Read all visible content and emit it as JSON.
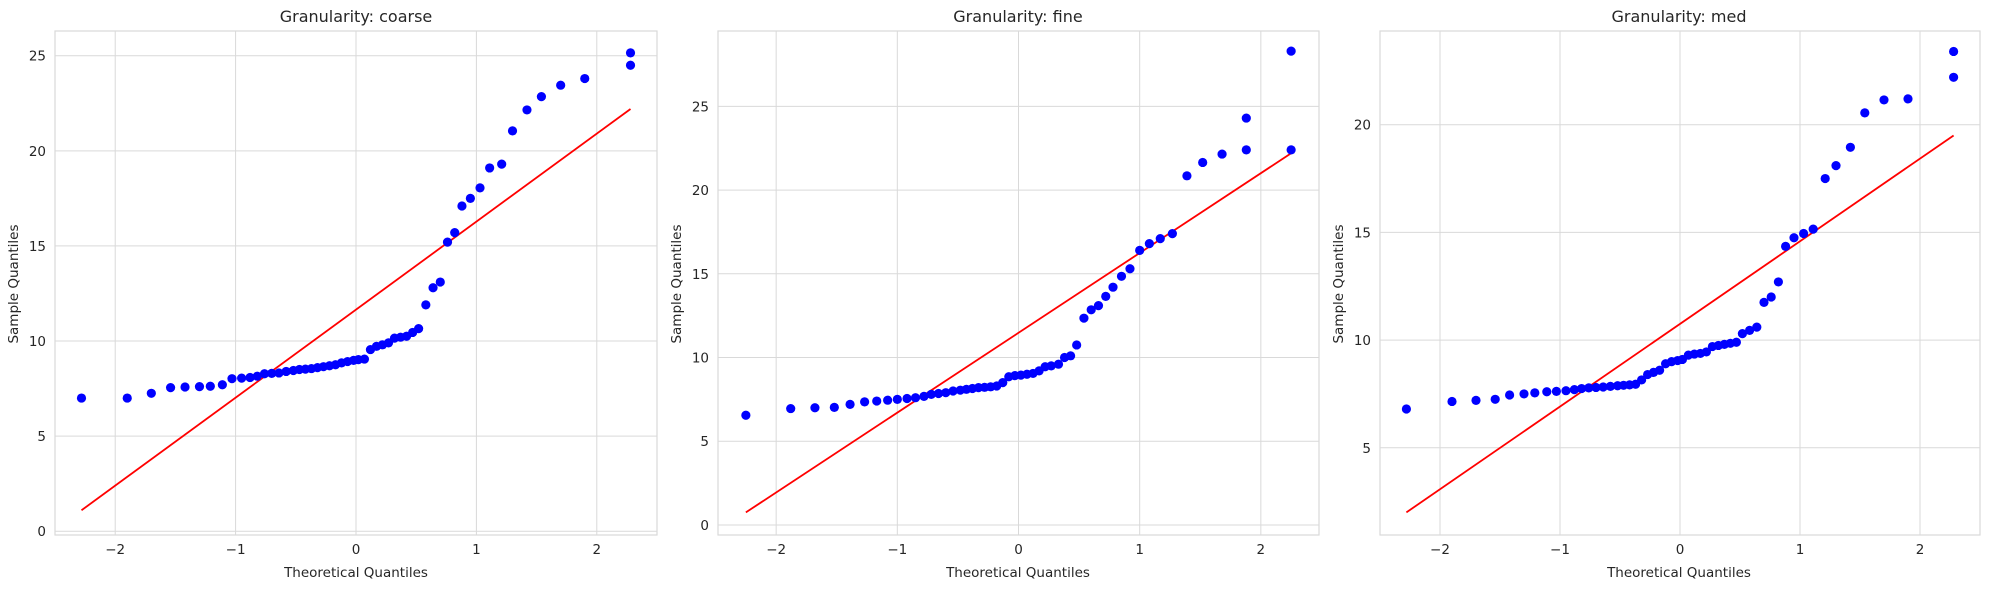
{
  "figure": {
    "background": "#ffffff",
    "grid_color": "#d9d9d9",
    "point_color": "#0000ff",
    "line_color": "#ff0000"
  },
  "chart_data": [
    {
      "type": "scatter",
      "title": "Granularity: coarse",
      "xlabel": "Theoretical Quantiles",
      "ylabel": "Sample Quantiles",
      "xlim": [
        -2.5,
        2.5
      ],
      "ylim": [
        -0.2,
        26.3
      ],
      "xticks": [
        -2,
        -1,
        0,
        1,
        2
      ],
      "xtick_labels": [
        "−2",
        "−1",
        "0",
        "1",
        "2"
      ],
      "yticks": [
        0,
        5,
        10,
        15,
        20,
        25
      ],
      "ytick_labels": [
        "0",
        "5",
        "10",
        "15",
        "20",
        "25"
      ],
      "grid": true,
      "points": [
        [
          -2.28,
          7.0
        ],
        [
          -1.9,
          7.0
        ],
        [
          -1.7,
          7.25
        ],
        [
          -1.54,
          7.55
        ],
        [
          -1.42,
          7.58
        ],
        [
          -1.3,
          7.6
        ],
        [
          -1.21,
          7.62
        ],
        [
          -1.11,
          7.7
        ],
        [
          -1.03,
          8.02
        ],
        [
          -0.95,
          8.05
        ],
        [
          -0.88,
          8.08
        ],
        [
          -0.82,
          8.15
        ],
        [
          -0.76,
          8.28
        ],
        [
          -0.7,
          8.3
        ],
        [
          -0.64,
          8.32
        ],
        [
          -0.58,
          8.4
        ],
        [
          -0.52,
          8.45
        ],
        [
          -0.47,
          8.5
        ],
        [
          -0.42,
          8.52
        ],
        [
          -0.37,
          8.55
        ],
        [
          -0.32,
          8.6
        ],
        [
          -0.27,
          8.65
        ],
        [
          -0.22,
          8.7
        ],
        [
          -0.17,
          8.75
        ],
        [
          -0.12,
          8.85
        ],
        [
          -0.07,
          8.92
        ],
        [
          -0.02,
          8.98
        ],
        [
          0.02,
          9.02
        ],
        [
          0.07,
          9.05
        ],
        [
          0.12,
          9.55
        ],
        [
          0.17,
          9.72
        ],
        [
          0.22,
          9.8
        ],
        [
          0.27,
          9.9
        ],
        [
          0.32,
          10.15
        ],
        [
          0.37,
          10.2
        ],
        [
          0.42,
          10.25
        ],
        [
          0.47,
          10.45
        ],
        [
          0.52,
          10.65
        ],
        [
          0.58,
          11.9
        ],
        [
          0.64,
          12.8
        ],
        [
          0.7,
          13.1
        ],
        [
          0.76,
          15.2
        ],
        [
          0.82,
          15.7
        ],
        [
          0.88,
          17.1
        ],
        [
          0.95,
          17.5
        ],
        [
          1.03,
          18.05
        ],
        [
          1.11,
          19.1
        ],
        [
          1.21,
          19.3
        ],
        [
          1.3,
          21.05
        ],
        [
          1.42,
          22.15
        ],
        [
          1.54,
          22.85
        ],
        [
          1.7,
          23.45
        ],
        [
          1.9,
          23.8
        ],
        [
          2.28,
          24.5
        ],
        [
          2.28,
          25.15
        ]
      ],
      "line": [
        [
          -2.28,
          1.1
        ],
        [
          2.28,
          22.2
        ]
      ]
    },
    {
      "type": "scatter",
      "title": "Granularity: fine",
      "xlabel": "Theoretical Quantiles",
      "ylabel": "Sample Quantiles",
      "xlim": [
        -2.48,
        2.48
      ],
      "ylim": [
        -0.6,
        29.5
      ],
      "xticks": [
        -2,
        -1,
        0,
        1,
        2
      ],
      "xtick_labels": [
        "−2",
        "−1",
        "0",
        "1",
        "2"
      ],
      "yticks": [
        0,
        5,
        10,
        15,
        20,
        25
      ],
      "ytick_labels": [
        "0",
        "5",
        "10",
        "15",
        "20",
        "25"
      ],
      "grid": true,
      "points": [
        [
          -2.25,
          6.55
        ],
        [
          -1.88,
          6.95
        ],
        [
          -1.68,
          7.0
        ],
        [
          -1.52,
          7.02
        ],
        [
          -1.39,
          7.2
        ],
        [
          -1.27,
          7.35
        ],
        [
          -1.17,
          7.4
        ],
        [
          -1.08,
          7.45
        ],
        [
          -1.0,
          7.5
        ],
        [
          -0.92,
          7.55
        ],
        [
          -0.85,
          7.6
        ],
        [
          -0.78,
          7.68
        ],
        [
          -0.72,
          7.8
        ],
        [
          -0.66,
          7.85
        ],
        [
          -0.6,
          7.9
        ],
        [
          -0.54,
          8.0
        ],
        [
          -0.48,
          8.05
        ],
        [
          -0.43,
          8.1
        ],
        [
          -0.38,
          8.15
        ],
        [
          -0.33,
          8.2
        ],
        [
          -0.28,
          8.22
        ],
        [
          -0.23,
          8.25
        ],
        [
          -0.18,
          8.3
        ],
        [
          -0.13,
          8.5
        ],
        [
          -0.08,
          8.85
        ],
        [
          -0.03,
          8.92
        ],
        [
          0.02,
          8.95
        ],
        [
          0.07,
          9.0
        ],
        [
          0.12,
          9.05
        ],
        [
          0.17,
          9.2
        ],
        [
          0.22,
          9.45
        ],
        [
          0.27,
          9.5
        ],
        [
          0.33,
          9.6
        ],
        [
          0.38,
          10.0
        ],
        [
          0.43,
          10.1
        ],
        [
          0.48,
          10.75
        ],
        [
          0.54,
          12.35
        ],
        [
          0.6,
          12.85
        ],
        [
          0.66,
          13.1
        ],
        [
          0.72,
          13.65
        ],
        [
          0.78,
          14.2
        ],
        [
          0.85,
          14.85
        ],
        [
          0.92,
          15.3
        ],
        [
          1.0,
          16.4
        ],
        [
          1.08,
          16.8
        ],
        [
          1.17,
          17.1
        ],
        [
          1.27,
          17.4
        ],
        [
          1.39,
          20.85
        ],
        [
          1.52,
          21.65
        ],
        [
          1.68,
          22.15
        ],
        [
          1.88,
          22.4
        ],
        [
          2.25,
          22.4
        ],
        [
          1.88,
          24.3
        ],
        [
          2.25,
          28.3
        ]
      ],
      "line": [
        [
          -2.25,
          0.75
        ],
        [
          2.25,
          22.2
        ]
      ]
    },
    {
      "type": "scatter",
      "title": "Granularity: med",
      "xlabel": "Theoretical Quantiles",
      "ylabel": "Sample Quantiles",
      "xlim": [
        -2.5,
        2.5
      ],
      "ylim": [
        0.95,
        24.35
      ],
      "xticks": [
        -2,
        -1,
        0,
        1,
        2
      ],
      "xtick_labels": [
        "−2",
        "−1",
        "0",
        "1",
        "2"
      ],
      "yticks": [
        5,
        10,
        15,
        20
      ],
      "ytick_labels": [
        "5",
        "10",
        "15",
        "20"
      ],
      "grid": true,
      "points": [
        [
          -2.28,
          6.8
        ],
        [
          -1.9,
          7.15
        ],
        [
          -1.7,
          7.2
        ],
        [
          -1.54,
          7.25
        ],
        [
          -1.42,
          7.45
        ],
        [
          -1.3,
          7.5
        ],
        [
          -1.21,
          7.55
        ],
        [
          -1.11,
          7.6
        ],
        [
          -1.03,
          7.62
        ],
        [
          -0.95,
          7.65
        ],
        [
          -0.88,
          7.7
        ],
        [
          -0.82,
          7.75
        ],
        [
          -0.76,
          7.78
        ],
        [
          -0.7,
          7.8
        ],
        [
          -0.64,
          7.82
        ],
        [
          -0.58,
          7.85
        ],
        [
          -0.52,
          7.88
        ],
        [
          -0.47,
          7.9
        ],
        [
          -0.42,
          7.92
        ],
        [
          -0.37,
          7.95
        ],
        [
          -0.32,
          8.15
        ],
        [
          -0.27,
          8.4
        ],
        [
          -0.22,
          8.5
        ],
        [
          -0.17,
          8.6
        ],
        [
          -0.12,
          8.9
        ],
        [
          -0.07,
          9.0
        ],
        [
          -0.02,
          9.05
        ],
        [
          0.02,
          9.1
        ],
        [
          0.07,
          9.3
        ],
        [
          0.12,
          9.35
        ],
        [
          0.17,
          9.38
        ],
        [
          0.22,
          9.45
        ],
        [
          0.27,
          9.7
        ],
        [
          0.32,
          9.75
        ],
        [
          0.37,
          9.8
        ],
        [
          0.42,
          9.85
        ],
        [
          0.47,
          9.9
        ],
        [
          0.52,
          10.3
        ],
        [
          0.58,
          10.45
        ],
        [
          0.64,
          10.6
        ],
        [
          0.7,
          11.75
        ],
        [
          0.76,
          12.0
        ],
        [
          0.82,
          12.7
        ],
        [
          0.88,
          14.35
        ],
        [
          0.95,
          14.75
        ],
        [
          1.03,
          14.95
        ],
        [
          1.11,
          15.15
        ],
        [
          1.21,
          17.5
        ],
        [
          1.3,
          18.1
        ],
        [
          1.42,
          18.95
        ],
        [
          1.54,
          20.55
        ],
        [
          1.7,
          21.15
        ],
        [
          1.9,
          21.2
        ],
        [
          2.28,
          22.2
        ],
        [
          2.28,
          23.4
        ]
      ],
      "line": [
        [
          -2.28,
          2.0
        ],
        [
          2.28,
          19.5
        ]
      ]
    }
  ]
}
